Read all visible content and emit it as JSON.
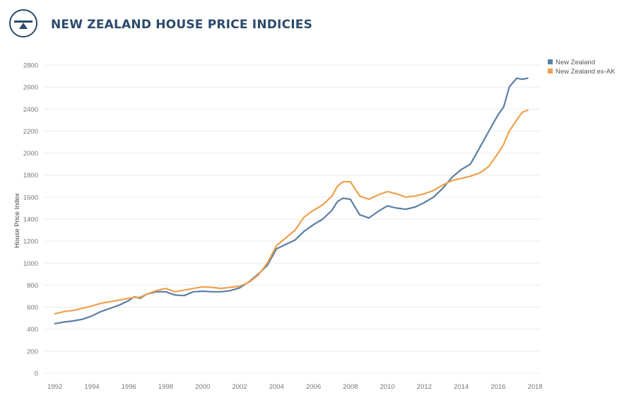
{
  "header": {
    "title": "NEW ZEALAND HOUSE PRICE INDICIES"
  },
  "colors": {
    "brand": "#2c4a6b",
    "series_nz": "#5b7fa6",
    "series_exak": "#f0a04b",
    "grid": "#ececec"
  },
  "icons": {
    "logo": "bank-emblem-icon"
  },
  "chart_data": {
    "type": "line",
    "title": "NEW ZEALAND HOUSE PRICE INDICIES",
    "xlabel": "",
    "ylabel": "House Price Index",
    "xlim": [
      1991.4,
      2018.3
    ],
    "ylim": [
      0,
      2800
    ],
    "grid": true,
    "legend_position": "top-right",
    "x_ticks": [
      1992,
      1994,
      1996,
      1998,
      2000,
      2002,
      2004,
      2006,
      2008,
      2010,
      2012,
      2014,
      2016,
      2018
    ],
    "y_ticks": [
      0,
      200,
      400,
      600,
      800,
      1000,
      1200,
      1400,
      1600,
      1800,
      2000,
      2200,
      2400,
      2600,
      2800
    ],
    "series": [
      {
        "name": "New Zealand",
        "color": "#5b7fa6",
        "x": [
          1992.0,
          1992.5,
          1993.0,
          1993.5,
          1994.0,
          1994.5,
          1995.0,
          1995.5,
          1996.0,
          1996.3,
          1996.6,
          1997.0,
          1997.5,
          1998.0,
          1998.5,
          1999.0,
          1999.5,
          2000.0,
          2000.5,
          2001.0,
          2001.5,
          2002.0,
          2002.5,
          2003.0,
          2003.5,
          2004.0,
          2004.5,
          2005.0,
          2005.5,
          2006.0,
          2006.5,
          2007.0,
          2007.3,
          2007.6,
          2008.0,
          2008.5,
          2009.0,
          2009.5,
          2010.0,
          2010.5,
          2011.0,
          2011.5,
          2012.0,
          2012.5,
          2013.0,
          2013.5,
          2014.0,
          2014.5,
          2015.0,
          2015.5,
          2016.0,
          2016.3,
          2016.6,
          2017.0,
          2017.3,
          2017.6
        ],
        "values": [
          450,
          465,
          475,
          490,
          520,
          560,
          590,
          620,
          660,
          695,
          680,
          720,
          740,
          740,
          710,
          705,
          740,
          745,
          740,
          740,
          750,
          775,
          830,
          900,
          980,
          1130,
          1170,
          1210,
          1290,
          1350,
          1400,
          1480,
          1560,
          1590,
          1580,
          1440,
          1410,
          1470,
          1520,
          1500,
          1490,
          1510,
          1550,
          1600,
          1680,
          1780,
          1850,
          1900,
          2050,
          2200,
          2350,
          2420,
          2600,
          2680,
          2670,
          2680
        ]
      },
      {
        "name": "New Zealand ex-AK",
        "color": "#f0a04b",
        "x": [
          1992.0,
          1992.5,
          1993.0,
          1993.5,
          1994.0,
          1994.5,
          1995.0,
          1995.5,
          1996.0,
          1996.3,
          1996.6,
          1997.0,
          1997.5,
          1998.0,
          1998.5,
          1999.0,
          1999.5,
          2000.0,
          2000.5,
          2001.0,
          2001.5,
          2002.0,
          2002.5,
          2003.0,
          2003.5,
          2004.0,
          2004.5,
          2005.0,
          2005.5,
          2006.0,
          2006.5,
          2007.0,
          2007.3,
          2007.6,
          2008.0,
          2008.5,
          2009.0,
          2009.5,
          2010.0,
          2010.5,
          2011.0,
          2011.5,
          2012.0,
          2012.5,
          2013.0,
          2013.5,
          2014.0,
          2014.5,
          2015.0,
          2015.5,
          2016.0,
          2016.3,
          2016.6,
          2017.0,
          2017.3,
          2017.6
        ],
        "values": [
          540,
          560,
          570,
          590,
          610,
          635,
          650,
          665,
          680,
          690,
          690,
          720,
          750,
          770,
          740,
          755,
          770,
          785,
          780,
          770,
          780,
          790,
          825,
          890,
          1000,
          1160,
          1230,
          1300,
          1420,
          1480,
          1530,
          1610,
          1700,
          1740,
          1740,
          1610,
          1580,
          1620,
          1650,
          1630,
          1600,
          1610,
          1630,
          1660,
          1710,
          1750,
          1770,
          1790,
          1820,
          1880,
          2000,
          2080,
          2200,
          2300,
          2370,
          2390
        ]
      }
    ]
  }
}
